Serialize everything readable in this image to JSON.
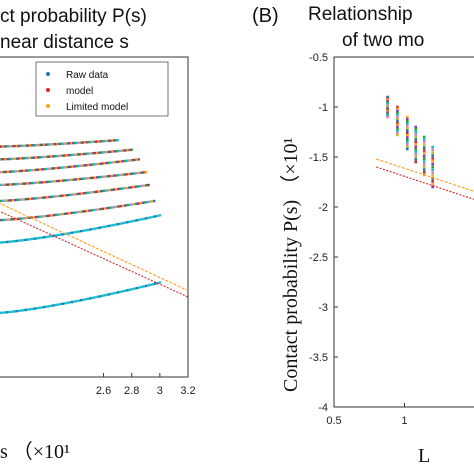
{
  "chart_data": [
    {
      "panel": "A",
      "type": "scatter",
      "title": "ct probability P(s)",
      "subtitle": "near distance s",
      "xlabel": "s （×10¹",
      "ylabel": "",
      "xlim": [
        1.85,
        3.2
      ],
      "ylim": [
        0,
        1
      ],
      "x_ticks": [
        "2.6",
        "2.8",
        "3",
        "3.2"
      ],
      "x_tick_values": [
        2.6,
        2.8,
        3.0,
        3.2
      ],
      "legend": {
        "placement": "top-right",
        "entries": [
          {
            "label": "Raw data",
            "color": "#1f77b4"
          },
          {
            "label": "model",
            "color": "#d62728"
          },
          {
            "label": "Limited model",
            "color": "#ff9f1c"
          }
        ]
      },
      "raw_bands": [
        {
          "x_start": 1.85,
          "x_end": 3.0,
          "y_start": 0.2,
          "y_end": 0.295
        },
        {
          "x_start": 1.85,
          "x_end": 3.0,
          "y_start": 0.42,
          "y_end": 0.505
        },
        {
          "x_start": 1.85,
          "x_end": 2.96,
          "y_start": 0.49,
          "y_end": 0.55
        },
        {
          "x_start": 1.85,
          "x_end": 2.92,
          "y_start": 0.55,
          "y_end": 0.6
        },
        {
          "x_start": 1.85,
          "x_end": 2.9,
          "y_start": 0.6,
          "y_end": 0.64
        },
        {
          "x_start": 1.85,
          "x_end": 2.85,
          "y_start": 0.64,
          "y_end": 0.68
        },
        {
          "x_start": 1.85,
          "x_end": 2.8,
          "y_start": 0.68,
          "y_end": 0.71
        },
        {
          "x_start": 1.85,
          "x_end": 2.7,
          "y_start": 0.72,
          "y_end": 0.74
        }
      ],
      "series": [
        {
          "name": "model",
          "color": "#d62728",
          "x": [
            1.85,
            3.2
          ],
          "y": [
            0.52,
            0.25
          ]
        },
        {
          "name": "Limited model",
          "color": "#ff9f1c",
          "x": [
            1.85,
            3.2
          ],
          "y": [
            0.545,
            0.27
          ]
        }
      ]
    },
    {
      "panel": "B",
      "type": "scatter",
      "title": "Relationship",
      "subtitle": "of two mo",
      "xlabel": "L",
      "ylabel": "Contact probability P(s) （×10¹",
      "xlim": [
        0.5,
        1.55
      ],
      "ylim": [
        -4,
        -0.5
      ],
      "x_ticks": [
        "0.5",
        "1"
      ],
      "x_tick_values": [
        0.5,
        1.0
      ],
      "y_ticks": [
        "-0.5",
        "-1",
        "-1.5",
        "-2",
        "-2.5",
        "-3",
        "-3.5",
        "-4"
      ],
      "y_tick_values": [
        -0.5,
        -1,
        -1.5,
        -2,
        -2.5,
        -3,
        -3.5,
        -4
      ],
      "raw_columns": [
        {
          "x": 0.88,
          "y_top": -0.9,
          "y_bottom": -1.1
        },
        {
          "x": 0.95,
          "y_top": -1.0,
          "y_bottom": -1.28
        },
        {
          "x": 1.02,
          "y_top": -1.1,
          "y_bottom": -1.42
        },
        {
          "x": 1.08,
          "y_top": -1.2,
          "y_bottom": -1.55
        },
        {
          "x": 1.14,
          "y_top": -1.3,
          "y_bottom": -1.68
        },
        {
          "x": 1.2,
          "y_top": -1.4,
          "y_bottom": -1.8
        }
      ],
      "series": [
        {
          "name": "model",
          "color": "#d62728",
          "x": [
            0.8,
            1.55
          ],
          "y": [
            -1.6,
            -1.95
          ]
        },
        {
          "name": "Limited model",
          "color": "#ff9f1c",
          "x": [
            0.8,
            1.55
          ],
          "y": [
            -1.52,
            -1.87
          ]
        }
      ]
    }
  ]
}
